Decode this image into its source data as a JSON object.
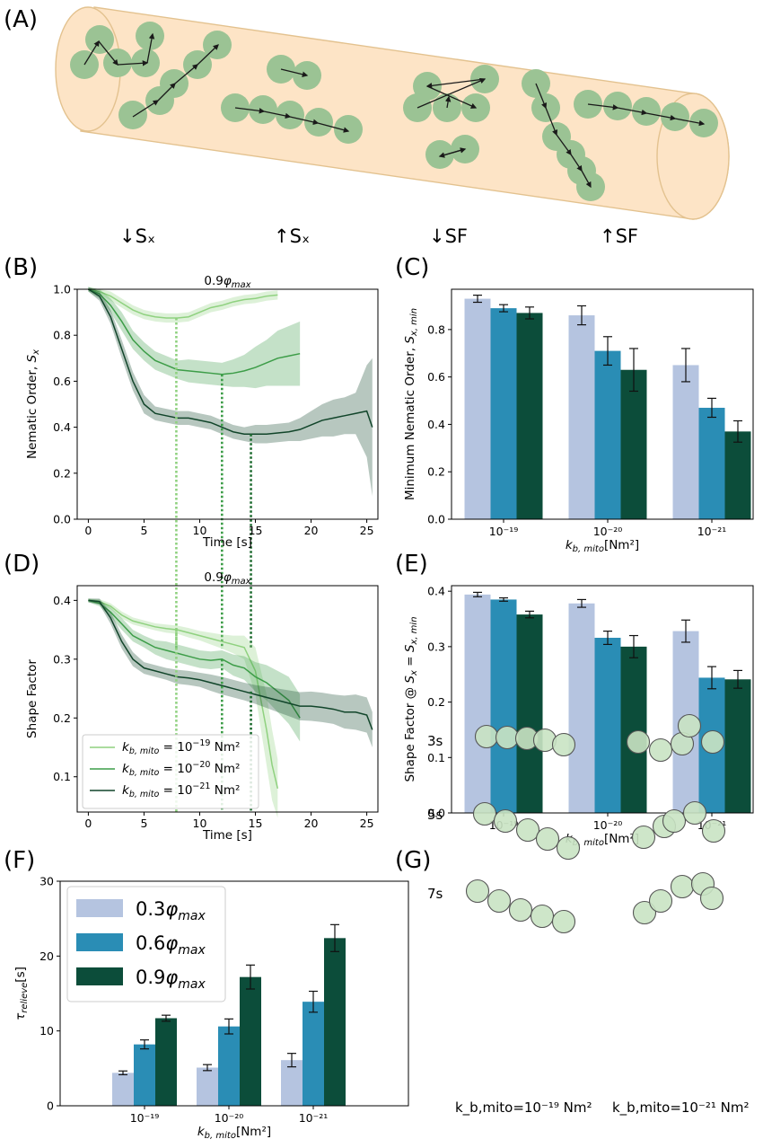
{
  "panels": {
    "A": "(A)",
    "B": "(B)",
    "C": "(C)",
    "D": "(D)",
    "E": "(E)",
    "F": "(F)",
    "G": "(G)"
  },
  "panelA": {
    "labels": [
      "↓Sₓ",
      "↑Sₓ",
      "↓SF",
      "↑SF"
    ],
    "colors": {
      "tube": "#fde4c6",
      "tube_edge": "#e3c28f",
      "bead": "#9bc394",
      "arrow": "#1a1a1a"
    }
  },
  "colors": {
    "light": "#b5c4e0",
    "mid": "#2a8db5",
    "dark": "#0c4d3a",
    "line_light": "#8fd17f",
    "line_mid": "#3d9d48",
    "line_dark": "#11452a"
  },
  "chart_data": [
    {
      "id": "B",
      "type": "line",
      "title": "0.9φ_max",
      "xlabel": "Time [s]",
      "ylabel": "Nematic Order, S_x",
      "xlim": [
        -1,
        26
      ],
      "ylim": [
        0.0,
        1.0
      ],
      "xticks": [
        "0",
        "5",
        "10",
        "15",
        "20",
        "25"
      ],
      "yticks": [
        "0.0",
        "0.2",
        "0.4",
        "0.6",
        "0.8",
        "1.0"
      ],
      "series": [
        {
          "name": "k_b,mito = 10^-19 Nm²",
          "x": [
            0,
            1,
            2,
            3,
            4,
            5,
            6,
            7,
            8,
            9,
            10,
            11,
            12,
            13,
            14,
            15,
            16,
            17
          ],
          "y": [
            1.0,
            0.99,
            0.97,
            0.94,
            0.91,
            0.89,
            0.88,
            0.875,
            0.875,
            0.88,
            0.9,
            0.92,
            0.93,
            0.945,
            0.955,
            0.96,
            0.97,
            0.975
          ],
          "band": [
            0.01,
            0.01,
            0.02,
            0.02,
            0.02,
            0.02,
            0.02,
            0.02,
            0.02,
            0.02,
            0.02,
            0.02,
            0.02,
            0.02,
            0.02,
            0.02,
            0.02,
            0.02
          ]
        },
        {
          "name": "k_b,mito = 10^-20 Nm²",
          "x": [
            0,
            1,
            2,
            3,
            4,
            5,
            6,
            7,
            8,
            9,
            10,
            11,
            12,
            13,
            14,
            15,
            16,
            17,
            18,
            19
          ],
          "y": [
            1.0,
            0.98,
            0.93,
            0.86,
            0.78,
            0.73,
            0.69,
            0.67,
            0.65,
            0.645,
            0.64,
            0.635,
            0.63,
            0.635,
            0.645,
            0.66,
            0.68,
            0.7,
            0.71,
            0.72
          ],
          "band": [
            0.01,
            0.02,
            0.03,
            0.04,
            0.04,
            0.04,
            0.04,
            0.04,
            0.04,
            0.05,
            0.05,
            0.05,
            0.05,
            0.06,
            0.07,
            0.09,
            0.1,
            0.12,
            0.13,
            0.14
          ]
        },
        {
          "name": "k_b,mito = 10^-21 Nm²",
          "x": [
            0,
            1,
            2,
            3,
            4,
            5,
            6,
            7,
            8,
            9,
            10,
            11,
            12,
            13,
            14,
            15,
            16,
            17,
            18,
            19,
            20,
            21,
            22,
            23,
            24,
            25,
            25.5
          ],
          "y": [
            1.0,
            0.97,
            0.88,
            0.74,
            0.6,
            0.5,
            0.46,
            0.45,
            0.44,
            0.44,
            0.43,
            0.42,
            0.4,
            0.38,
            0.37,
            0.37,
            0.37,
            0.375,
            0.38,
            0.39,
            0.41,
            0.43,
            0.44,
            0.45,
            0.46,
            0.47,
            0.4
          ],
          "band": [
            0.01,
            0.02,
            0.03,
            0.04,
            0.04,
            0.04,
            0.03,
            0.03,
            0.03,
            0.03,
            0.03,
            0.03,
            0.03,
            0.03,
            0.03,
            0.04,
            0.04,
            0.04,
            0.04,
            0.05,
            0.06,
            0.07,
            0.08,
            0.08,
            0.09,
            0.2,
            0.3
          ]
        }
      ],
      "vlines": [
        {
          "x": 7.9,
          "y": 0.875
        },
        {
          "x": 12.0,
          "y": 0.63
        },
        {
          "x": 14.6,
          "y": 0.37
        }
      ]
    },
    {
      "id": "C",
      "type": "bar",
      "xlabel": "k_b,mito[Nm²]",
      "ylabel": "Minimum Nematic Order, S_x,min",
      "categories": [
        "10⁻¹⁹",
        "10⁻²⁰",
        "10⁻²¹"
      ],
      "ylim": [
        0.0,
        0.97
      ],
      "yticks": [
        "0.0",
        "0.2",
        "0.4",
        "0.6",
        "0.8"
      ],
      "series": [
        {
          "values": [
            0.93,
            0.86,
            0.65
          ],
          "err": [
            0.015,
            0.04,
            0.07
          ]
        },
        {
          "values": [
            0.89,
            0.71,
            0.47
          ],
          "err": [
            0.015,
            0.06,
            0.04
          ]
        },
        {
          "values": [
            0.87,
            0.63,
            0.37
          ],
          "err": [
            0.025,
            0.09,
            0.045
          ]
        }
      ]
    },
    {
      "id": "D",
      "type": "line",
      "title": "0.9φ_max",
      "xlabel": "Time [s]",
      "ylabel": "Shape Factor",
      "xlim": [
        -1,
        26
      ],
      "ylim": [
        0.04,
        0.425
      ],
      "xticks": [
        "0",
        "5",
        "10",
        "15",
        "20",
        "25"
      ],
      "yticks": [
        "0.1",
        "0.2",
        "0.3",
        "0.4"
      ],
      "legend_position": "lower-left",
      "series": [
        {
          "name": "k_b,mito = 10⁻¹⁹ Nm²",
          "x": [
            0,
            1,
            2,
            3,
            4,
            5,
            6,
            7,
            8,
            9,
            10,
            11,
            12,
            13,
            14,
            15,
            16,
            16.5,
            17
          ],
          "y": [
            0.4,
            0.398,
            0.39,
            0.375,
            0.365,
            0.36,
            0.355,
            0.352,
            0.35,
            0.345,
            0.34,
            0.335,
            0.33,
            0.325,
            0.32,
            0.28,
            0.18,
            0.12,
            0.08
          ],
          "band": [
            0.003,
            0.004,
            0.005,
            0.006,
            0.006,
            0.006,
            0.006,
            0.007,
            0.007,
            0.008,
            0.008,
            0.01,
            0.012,
            0.015,
            0.02,
            0.04,
            0.06,
            0.06,
            0.05
          ]
        },
        {
          "name": "k_b,mito = 10⁻²⁰ Nm²",
          "x": [
            0,
            1,
            2,
            3,
            4,
            5,
            6,
            7,
            8,
            9,
            10,
            11,
            12,
            13,
            14,
            15,
            16,
            17,
            18,
            19
          ],
          "y": [
            0.4,
            0.395,
            0.38,
            0.36,
            0.34,
            0.33,
            0.32,
            0.315,
            0.31,
            0.305,
            0.3,
            0.298,
            0.3,
            0.29,
            0.285,
            0.27,
            0.26,
            0.245,
            0.23,
            0.2
          ],
          "band": [
            0.003,
            0.005,
            0.008,
            0.01,
            0.01,
            0.01,
            0.012,
            0.015,
            0.015,
            0.015,
            0.015,
            0.015,
            0.015,
            0.018,
            0.02,
            0.025,
            0.03,
            0.035,
            0.04,
            0.04
          ]
        },
        {
          "name": "k_b,mito = 10⁻²¹ Nm²",
          "x": [
            0,
            1,
            2,
            3,
            4,
            5,
            6,
            7,
            8,
            9,
            10,
            11,
            12,
            13,
            14,
            15,
            16,
            17,
            18,
            19,
            20,
            21,
            22,
            23,
            24,
            25,
            25.5
          ],
          "y": [
            0.4,
            0.398,
            0.37,
            0.33,
            0.3,
            0.285,
            0.28,
            0.275,
            0.27,
            0.268,
            0.265,
            0.26,
            0.255,
            0.25,
            0.245,
            0.24,
            0.235,
            0.23,
            0.225,
            0.22,
            0.22,
            0.218,
            0.215,
            0.21,
            0.21,
            0.205,
            0.18
          ],
          "band": [
            0.003,
            0.005,
            0.01,
            0.012,
            0.012,
            0.01,
            0.01,
            0.01,
            0.012,
            0.012,
            0.012,
            0.014,
            0.015,
            0.015,
            0.015,
            0.016,
            0.018,
            0.02,
            0.022,
            0.024,
            0.025,
            0.025,
            0.025,
            0.028,
            0.03,
            0.03,
            0.03
          ]
        }
      ],
      "vlines": [
        {
          "x": 7.9,
          "y": 0.35
        },
        {
          "x": 12.0,
          "y": 0.3
        },
        {
          "x": 14.6,
          "y": 0.245
        }
      ]
    },
    {
      "id": "E",
      "type": "bar",
      "xlabel": "k_b,mito[Nm²]",
      "ylabel": "Shape Factor @ S_x = S_x,min",
      "categories": [
        "10⁻¹⁹",
        "10⁻²⁰",
        "10⁻²¹"
      ],
      "ylim": [
        0.0,
        0.41
      ],
      "yticks": [
        "0.0",
        "0.1",
        "0.2",
        "0.3",
        "0.4"
      ],
      "series": [
        {
          "values": [
            0.394,
            0.378,
            0.328
          ],
          "err": [
            0.004,
            0.007,
            0.02
          ]
        },
        {
          "values": [
            0.385,
            0.316,
            0.244
          ],
          "err": [
            0.003,
            0.012,
            0.02
          ]
        },
        {
          "values": [
            0.358,
            0.3,
            0.241
          ],
          "err": [
            0.006,
            0.02,
            0.016
          ]
        }
      ]
    },
    {
      "id": "F",
      "type": "bar",
      "xlabel": "k_b,mito[Nm²]",
      "ylabel": "τ_relieve[s]",
      "categories": [
        "10⁻¹⁹",
        "10⁻²⁰",
        "10⁻²¹"
      ],
      "ylim": [
        0,
        30
      ],
      "yticks": [
        "0",
        "10",
        "20",
        "30"
      ],
      "legend_position": "upper-left",
      "series": [
        {
          "name": "0.3φ_max",
          "values": [
            4.4,
            5.1,
            6.1
          ],
          "err": [
            0.25,
            0.4,
            0.9
          ]
        },
        {
          "name": "0.6φ_max",
          "values": [
            8.2,
            10.6,
            13.9
          ],
          "err": [
            0.6,
            1.0,
            1.4
          ]
        },
        {
          "name": "0.9φ_max",
          "values": [
            11.7,
            17.2,
            22.4
          ],
          "err": [
            0.4,
            1.6,
            1.8
          ]
        }
      ]
    }
  ],
  "panelG": {
    "rows": [
      "3s",
      "5s",
      "7s"
    ],
    "col_labels": [
      "k_b,mito=10⁻¹⁹ Nm²",
      "k_b,mito=10⁻²¹ Nm²"
    ]
  }
}
